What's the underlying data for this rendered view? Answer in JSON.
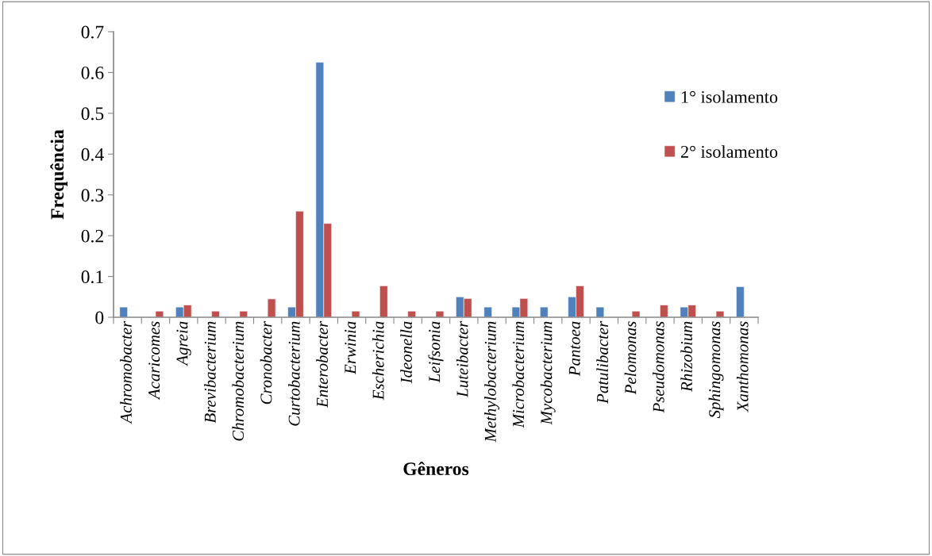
{
  "chart_data": {
    "type": "bar",
    "xlabel": "Gêneros",
    "ylabel": "Frequência",
    "categories": [
      "Achromobacter",
      "Acaricomes",
      "Agreia",
      "Brevibacterium",
      "Chromobacterium",
      "Cronobacter",
      "Curtobacterium",
      "Enterobacter",
      "Erwinia",
      "Escherichia",
      "Ideonella",
      "Leifsonia",
      "Luteibacter",
      "Methylobacterium",
      "Microbacterium",
      "Mycobacterium",
      "Pantoea",
      "Patulibacter",
      "Pelomonas",
      "Pseudomonas",
      "Rhizobium",
      "Sphingomonas",
      "Xanthomonas"
    ],
    "series": [
      {
        "name": "1° isolamento",
        "color": "#4f81bd",
        "values": [
          0.025,
          null,
          0.025,
          null,
          null,
          null,
          0.025,
          0.625,
          null,
          null,
          null,
          null,
          0.05,
          0.025,
          0.025,
          0.025,
          0.05,
          0.025,
          null,
          null,
          0.025,
          null,
          0.075
        ]
      },
      {
        "name": "2° isolamento",
        "color": "#c0504d",
        "values": [
          null,
          0.015,
          0.03,
          0.015,
          0.015,
          0.045,
          0.26,
          0.23,
          0.015,
          0.077,
          0.015,
          0.015,
          0.046,
          null,
          0.046,
          null,
          0.077,
          null,
          0.015,
          0.03,
          0.03,
          0.015,
          null
        ]
      }
    ],
    "ylim": [
      0,
      0.7
    ],
    "yticks": [
      0,
      0.1,
      0.2,
      0.3,
      0.4,
      0.5,
      0.6,
      0.7
    ],
    "grid": false,
    "legend": "right"
  }
}
